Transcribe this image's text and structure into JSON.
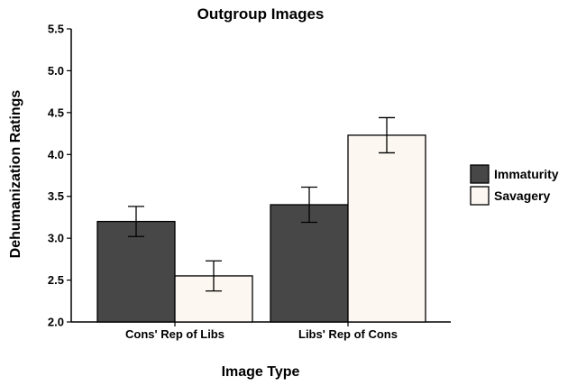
{
  "chart_data": {
    "type": "bar",
    "title": "Outgroup Images",
    "xlabel": "Image Type",
    "ylabel": "Dehumanization Ratings",
    "categories": [
      "Cons' Rep of Libs",
      "Libs' Rep of Cons"
    ],
    "series": [
      {
        "name": "Immaturity",
        "color": "#474747",
        "values": [
          3.2,
          3.4
        ],
        "error_low": [
          3.02,
          3.19
        ],
        "error_high": [
          3.38,
          3.61
        ]
      },
      {
        "name": "Savagery",
        "color": "#fcf7f0",
        "values": [
          2.55,
          4.23
        ],
        "error_low": [
          2.37,
          4.02
        ],
        "error_high": [
          2.73,
          4.44
        ]
      }
    ],
    "ylim": [
      2.0,
      5.5
    ],
    "yticks": [
      "2.0",
      "2.5",
      "3.0",
      "3.5",
      "4.0",
      "4.5",
      "5.0",
      "5.5"
    ],
    "grid": false,
    "legend_position": "right"
  }
}
